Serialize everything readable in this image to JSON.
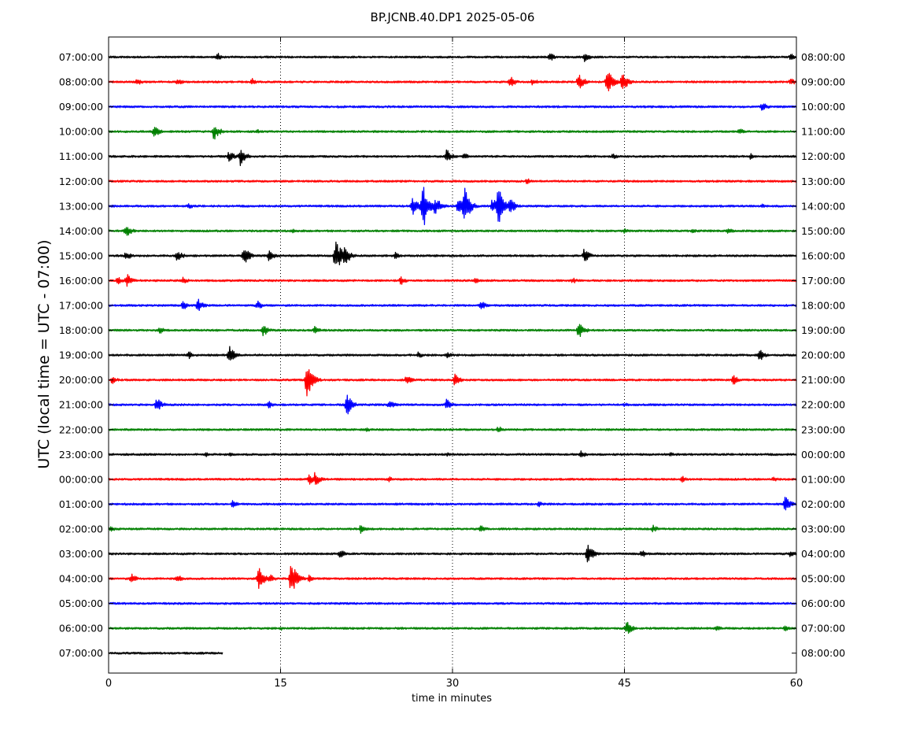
{
  "chart_data": {
    "type": "line",
    "title": "BP.JCNB.40.DP1 2025-05-06",
    "xlabel": "time in minutes",
    "ylabel": "UTC (local time = UTC - 07:00)",
    "xlim": [
      0,
      60
    ],
    "x_ticks": [
      0,
      15,
      30,
      45,
      60
    ],
    "grid": "vertical dotted lines at 15, 30, 45",
    "colors": [
      "#000000",
      "#ff0000",
      "#0000ff",
      "#008000"
    ],
    "rows": [
      {
        "left": "07:00:00",
        "right": "08:00:00",
        "color": "#000000",
        "events": [
          {
            "t": 9.5,
            "a": 6
          },
          {
            "t": 38.5,
            "a": 6
          },
          {
            "t": 41.5,
            "a": 7
          },
          {
            "t": 59.5,
            "a": 5
          }
        ]
      },
      {
        "left": "08:00:00",
        "right": "09:00:00",
        "color": "#ff0000",
        "events": [
          {
            "t": 2.5,
            "a": 5
          },
          {
            "t": 6,
            "a": 5
          },
          {
            "t": 12.5,
            "a": 5
          },
          {
            "t": 35,
            "a": 9
          },
          {
            "t": 37,
            "a": 5
          },
          {
            "t": 41,
            "a": 12
          },
          {
            "t": 43.5,
            "a": 18
          },
          {
            "t": 44.8,
            "a": 14
          },
          {
            "t": 59.5,
            "a": 5
          }
        ]
      },
      {
        "left": "09:00:00",
        "right": "10:00:00",
        "color": "#0000ff",
        "events": [
          {
            "t": 20,
            "a": 2
          },
          {
            "t": 57,
            "a": 7
          }
        ]
      },
      {
        "left": "10:00:00",
        "right": "11:00:00",
        "color": "#008000",
        "events": [
          {
            "t": 4,
            "a": 8
          },
          {
            "t": 9.2,
            "a": 12
          },
          {
            "t": 13,
            "a": 3
          },
          {
            "t": 55,
            "a": 5
          }
        ]
      },
      {
        "left": "11:00:00",
        "right": "12:00:00",
        "color": "#000000",
        "events": [
          {
            "t": 10.5,
            "a": 8
          },
          {
            "t": 11.5,
            "a": 12
          },
          {
            "t": 29.5,
            "a": 10
          },
          {
            "t": 31,
            "a": 5
          },
          {
            "t": 44,
            "a": 4
          },
          {
            "t": 56,
            "a": 4
          }
        ]
      },
      {
        "left": "12:00:00",
        "right": "13:00:00",
        "color": "#ff0000",
        "events": [
          {
            "t": 36.5,
            "a": 4
          }
        ]
      },
      {
        "left": "13:00:00",
        "right": "14:00:00",
        "color": "#0000ff",
        "events": [
          {
            "t": 7,
            "a": 4
          },
          {
            "t": 26.5,
            "a": 14
          },
          {
            "t": 27.4,
            "a": 36
          },
          {
            "t": 28.5,
            "a": 14
          },
          {
            "t": 30.5,
            "a": 10
          },
          {
            "t": 31,
            "a": 28
          },
          {
            "t": 33.5,
            "a": 12
          },
          {
            "t": 34,
            "a": 26
          },
          {
            "t": 35,
            "a": 12
          },
          {
            "t": 57,
            "a": 4
          }
        ]
      },
      {
        "left": "14:00:00",
        "right": "15:00:00",
        "color": "#008000",
        "events": [
          {
            "t": 1.5,
            "a": 10
          },
          {
            "t": 16,
            "a": 3
          },
          {
            "t": 45,
            "a": 4
          },
          {
            "t": 51,
            "a": 4
          },
          {
            "t": 54,
            "a": 5
          }
        ]
      },
      {
        "left": "15:00:00",
        "right": "16:00:00",
        "color": "#000000",
        "events": [
          {
            "t": 1.5,
            "a": 7
          },
          {
            "t": 6,
            "a": 8
          },
          {
            "t": 11.8,
            "a": 14
          },
          {
            "t": 14,
            "a": 8
          },
          {
            "t": 19.8,
            "a": 26
          },
          {
            "t": 20.6,
            "a": 14
          },
          {
            "t": 25,
            "a": 5
          },
          {
            "t": 41.5,
            "a": 10
          }
        ]
      },
      {
        "left": "16:00:00",
        "right": "17:00:00",
        "color": "#ff0000",
        "events": [
          {
            "t": 0.8,
            "a": 5
          },
          {
            "t": 1.6,
            "a": 9
          },
          {
            "t": 6.5,
            "a": 5
          },
          {
            "t": 25.5,
            "a": 6
          },
          {
            "t": 32,
            "a": 4
          },
          {
            "t": 40.5,
            "a": 4
          }
        ]
      },
      {
        "left": "17:00:00",
        "right": "18:00:00",
        "color": "#0000ff",
        "events": [
          {
            "t": 6.5,
            "a": 6
          },
          {
            "t": 7.8,
            "a": 9
          },
          {
            "t": 13,
            "a": 6
          },
          {
            "t": 32.5,
            "a": 6
          }
        ]
      },
      {
        "left": "18:00:00",
        "right": "19:00:00",
        "color": "#008000",
        "events": [
          {
            "t": 4.5,
            "a": 5
          },
          {
            "t": 13.5,
            "a": 8
          },
          {
            "t": 18,
            "a": 6
          },
          {
            "t": 41,
            "a": 12
          }
        ]
      },
      {
        "left": "19:00:00",
        "right": "20:00:00",
        "color": "#000000",
        "events": [
          {
            "t": 7,
            "a": 5
          },
          {
            "t": 10.5,
            "a": 13
          },
          {
            "t": 27,
            "a": 5
          },
          {
            "t": 29.5,
            "a": 5
          },
          {
            "t": 56.8,
            "a": 8
          }
        ]
      },
      {
        "left": "20:00:00",
        "right": "21:00:00",
        "color": "#ff0000",
        "events": [
          {
            "t": 0.3,
            "a": 6
          },
          {
            "t": 17.3,
            "a": 26
          },
          {
            "t": 26,
            "a": 7
          },
          {
            "t": 30.2,
            "a": 8
          },
          {
            "t": 54.5,
            "a": 7
          }
        ]
      },
      {
        "left": "21:00:00",
        "right": "22:00:00",
        "color": "#0000ff",
        "events": [
          {
            "t": 4.2,
            "a": 10
          },
          {
            "t": 14,
            "a": 5
          },
          {
            "t": 20.8,
            "a": 14
          },
          {
            "t": 24.5,
            "a": 7
          },
          {
            "t": 29.5,
            "a": 8
          },
          {
            "t": 45,
            "a": 3
          }
        ]
      },
      {
        "left": "22:00:00",
        "right": "23:00:00",
        "color": "#008000",
        "events": [
          {
            "t": 22.5,
            "a": 3
          },
          {
            "t": 34,
            "a": 5
          }
        ]
      },
      {
        "left": "23:00:00",
        "right": "00:00:00",
        "color": "#000000",
        "events": [
          {
            "t": 8.5,
            "a": 3
          },
          {
            "t": 10.5,
            "a": 3
          },
          {
            "t": 29.5,
            "a": 3
          },
          {
            "t": 41.2,
            "a": 5
          },
          {
            "t": 49,
            "a": 3
          }
        ]
      },
      {
        "left": "00:00:00",
        "right": "01:00:00",
        "color": "#ff0000",
        "events": [
          {
            "t": 17.5,
            "a": 7
          },
          {
            "t": 18,
            "a": 10
          },
          {
            "t": 24.5,
            "a": 4
          },
          {
            "t": 50,
            "a": 5
          },
          {
            "t": 58,
            "a": 4
          }
        ]
      },
      {
        "left": "01:00:00",
        "right": "02:00:00",
        "color": "#0000ff",
        "events": [
          {
            "t": 10.8,
            "a": 5
          },
          {
            "t": 37.5,
            "a": 4
          },
          {
            "t": 59,
            "a": 11
          }
        ]
      },
      {
        "left": "02:00:00",
        "right": "03:00:00",
        "color": "#008000",
        "events": [
          {
            "t": 0.2,
            "a": 4
          },
          {
            "t": 22,
            "a": 6
          },
          {
            "t": 32.5,
            "a": 6
          },
          {
            "t": 47.5,
            "a": 5
          }
        ]
      },
      {
        "left": "03:00:00",
        "right": "04:00:00",
        "color": "#000000",
        "events": [
          {
            "t": 20.2,
            "a": 7
          },
          {
            "t": 41.8,
            "a": 14
          },
          {
            "t": 46.5,
            "a": 6
          },
          {
            "t": 59.5,
            "a": 5
          }
        ]
      },
      {
        "left": "04:00:00",
        "right": "05:00:00",
        "color": "#ff0000",
        "events": [
          {
            "t": 2,
            "a": 7
          },
          {
            "t": 6,
            "a": 6
          },
          {
            "t": 13.1,
            "a": 15
          },
          {
            "t": 14,
            "a": 7
          },
          {
            "t": 15.9,
            "a": 26
          },
          {
            "t": 17.5,
            "a": 6
          }
        ]
      },
      {
        "left": "05:00:00",
        "right": "06:00:00",
        "color": "#0000ff",
        "events": [
          {
            "t": 30,
            "a": 2
          }
        ]
      },
      {
        "left": "06:00:00",
        "right": "07:00:00",
        "color": "#008000",
        "events": [
          {
            "t": 15,
            "a": 3
          },
          {
            "t": 45.2,
            "a": 10
          },
          {
            "t": 53,
            "a": 4
          },
          {
            "t": 59,
            "a": 4
          }
        ]
      },
      {
        "left": "07:00:00",
        "right": "08:00:00",
        "color": "#000000",
        "end": 10,
        "events": []
      }
    ]
  }
}
